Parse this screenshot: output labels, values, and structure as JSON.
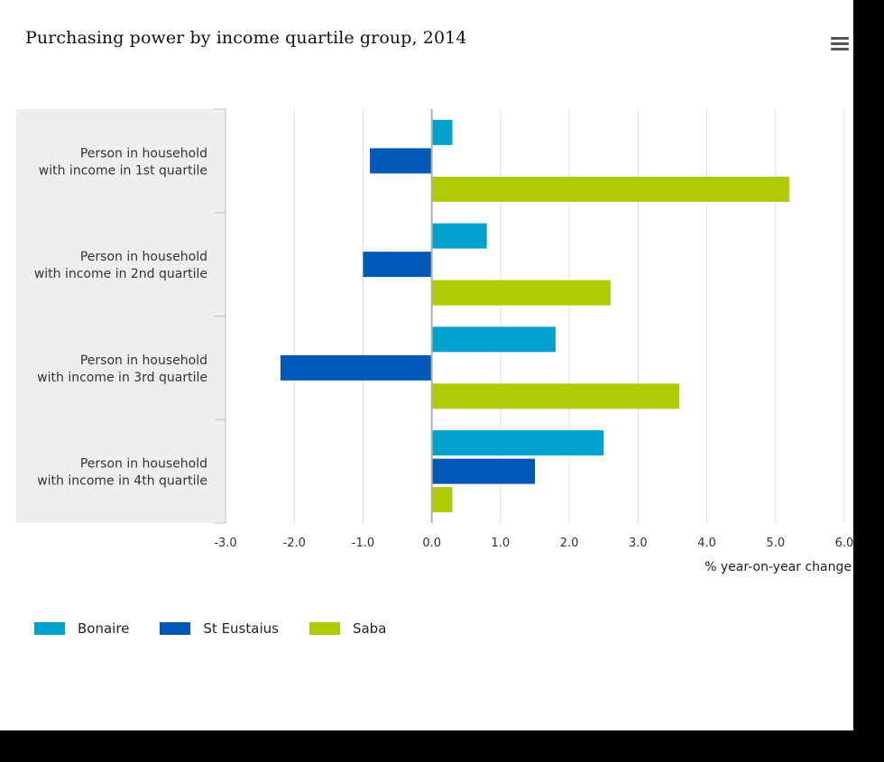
{
  "chart_data": {
    "type": "bar",
    "orientation": "horizontal",
    "title": "Purchasing power by income quartile group, 2014",
    "xlabel": "% year-on-year change",
    "xlim": [
      -3.0,
      6.0
    ],
    "xticks": [
      "-3.0",
      "-2.0",
      "-1.0",
      "0.0",
      "1.0",
      "2.0",
      "3.0",
      "4.0",
      "5.0",
      "6.0"
    ],
    "categories": [
      [
        "Person in household",
        "with income in 1st quartile"
      ],
      [
        "Person in household",
        "with income in 2nd quartile"
      ],
      [
        "Person in household",
        "with income in 3rd quartile"
      ],
      [
        "Person in household",
        "with income in 4th quartile"
      ]
    ],
    "series": [
      {
        "name": "Bonaire",
        "color": "#00a1cd",
        "values": [
          0.3,
          0.8,
          1.8,
          2.5
        ]
      },
      {
        "name": "St Eustaius",
        "color": "#0058b8",
        "values": [
          -0.9,
          -1.0,
          -2.2,
          1.5
        ]
      },
      {
        "name": "Saba",
        "color": "#afcb05",
        "values": [
          5.2,
          2.6,
          3.6,
          0.3
        ]
      }
    ],
    "grid": true,
    "legend_position": "bottom-left"
  },
  "menu_icon": "hamburger-menu-icon"
}
